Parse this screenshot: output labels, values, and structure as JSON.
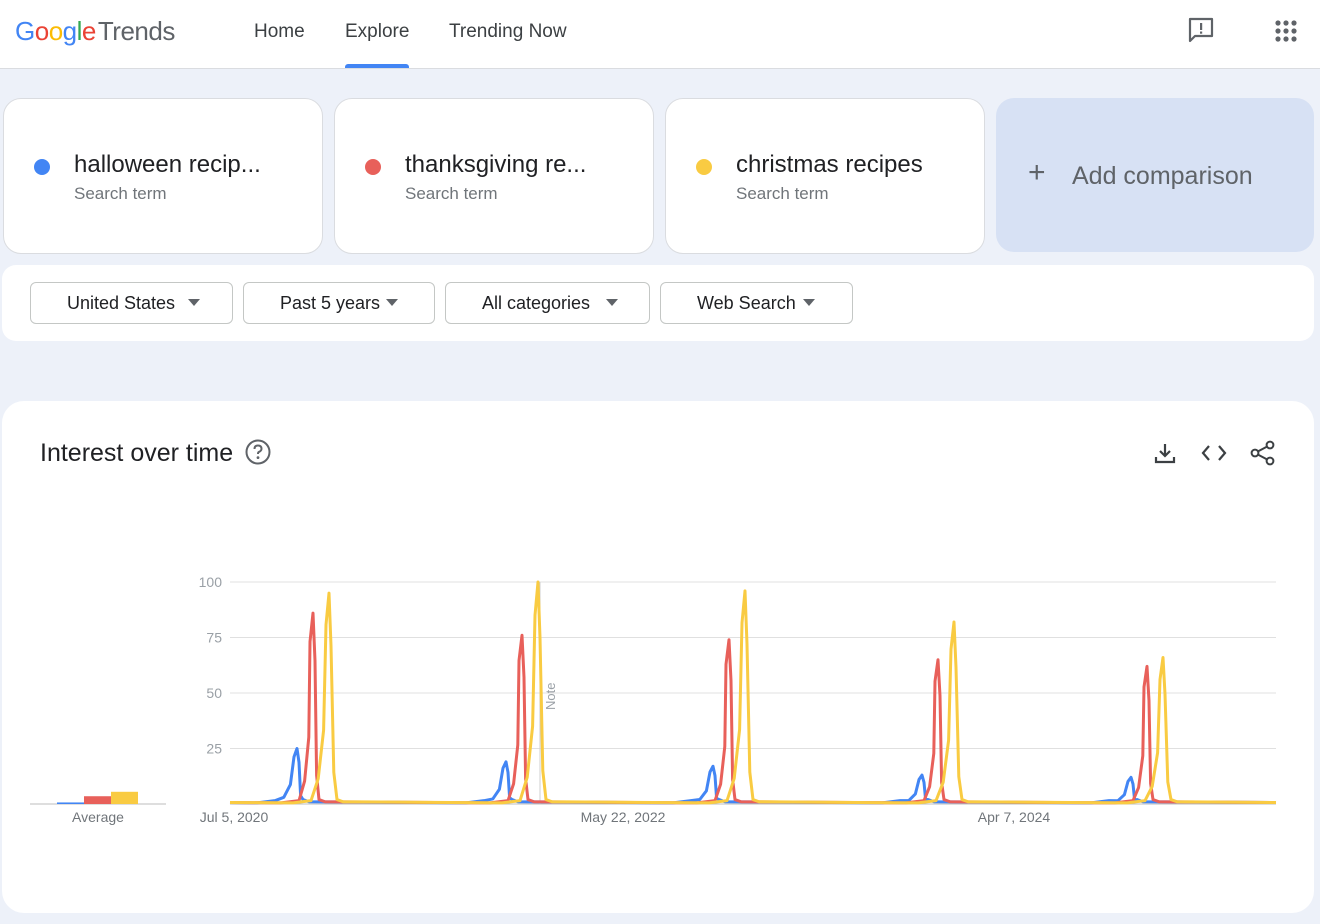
{
  "header": {
    "logo": {
      "g1": "G",
      "g2": "o",
      "g3": "o",
      "g4": "g",
      "g5": "l",
      "g6": "e",
      "trends": "Trends"
    },
    "nav": [
      {
        "label": "Home"
      },
      {
        "label": "Explore",
        "active": true
      },
      {
        "label": "Trending Now"
      }
    ],
    "feedback_icon": "feedback-icon",
    "apps_icon": "apps-grid-icon"
  },
  "terms": [
    {
      "name": "halloween recip...",
      "type": "Search term",
      "color": "#4285f4"
    },
    {
      "name": "thanksgiving re...",
      "type": "Search term",
      "color": "#e8605a"
    },
    {
      "name": "christmas recipes",
      "type": "Search term",
      "color": "#f9cb42"
    }
  ],
  "add_comparison": {
    "label": "Add comparison",
    "icon": "plus-icon"
  },
  "filters": [
    {
      "label": "United States"
    },
    {
      "label": "Past 5 years"
    },
    {
      "label": "All categories"
    },
    {
      "label": "Web Search"
    }
  ],
  "interest_panel": {
    "title": "Interest over time",
    "help_icon": "help-circle-icon",
    "actions": [
      "download-icon",
      "embed-code-icon",
      "share-icon"
    ]
  },
  "chart_data": {
    "type": "line",
    "y_ticks": [
      "100",
      "75",
      "50",
      "25"
    ],
    "ylim": [
      0,
      100
    ],
    "x_labels": [
      "Jul 5, 2020",
      "May 22, 2022",
      "Apr 7, 2024"
    ],
    "note_label": "Note",
    "average_label": "Average",
    "grid": true,
    "averages": [
      {
        "name": "halloween recipes",
        "value": 0.7,
        "color": "#4285f4"
      },
      {
        "name": "thanksgiving recipes",
        "value": 3.5,
        "color": "#e8605a"
      },
      {
        "name": "christmas recipes",
        "value": 5.5,
        "color": "#f9cb42"
      }
    ],
    "series": [
      {
        "name": "halloween recipes",
        "color": "#4285f4",
        "peaks": [
          25,
          19,
          17,
          13,
          12
        ]
      },
      {
        "name": "thanksgiving recipes",
        "color": "#e8605a",
        "peaks": [
          86,
          76,
          74,
          65,
          62
        ]
      },
      {
        "name": "christmas recipes",
        "color": "#f9cb42",
        "peaks": [
          95,
          100,
          96,
          82,
          66
        ]
      }
    ]
  }
}
